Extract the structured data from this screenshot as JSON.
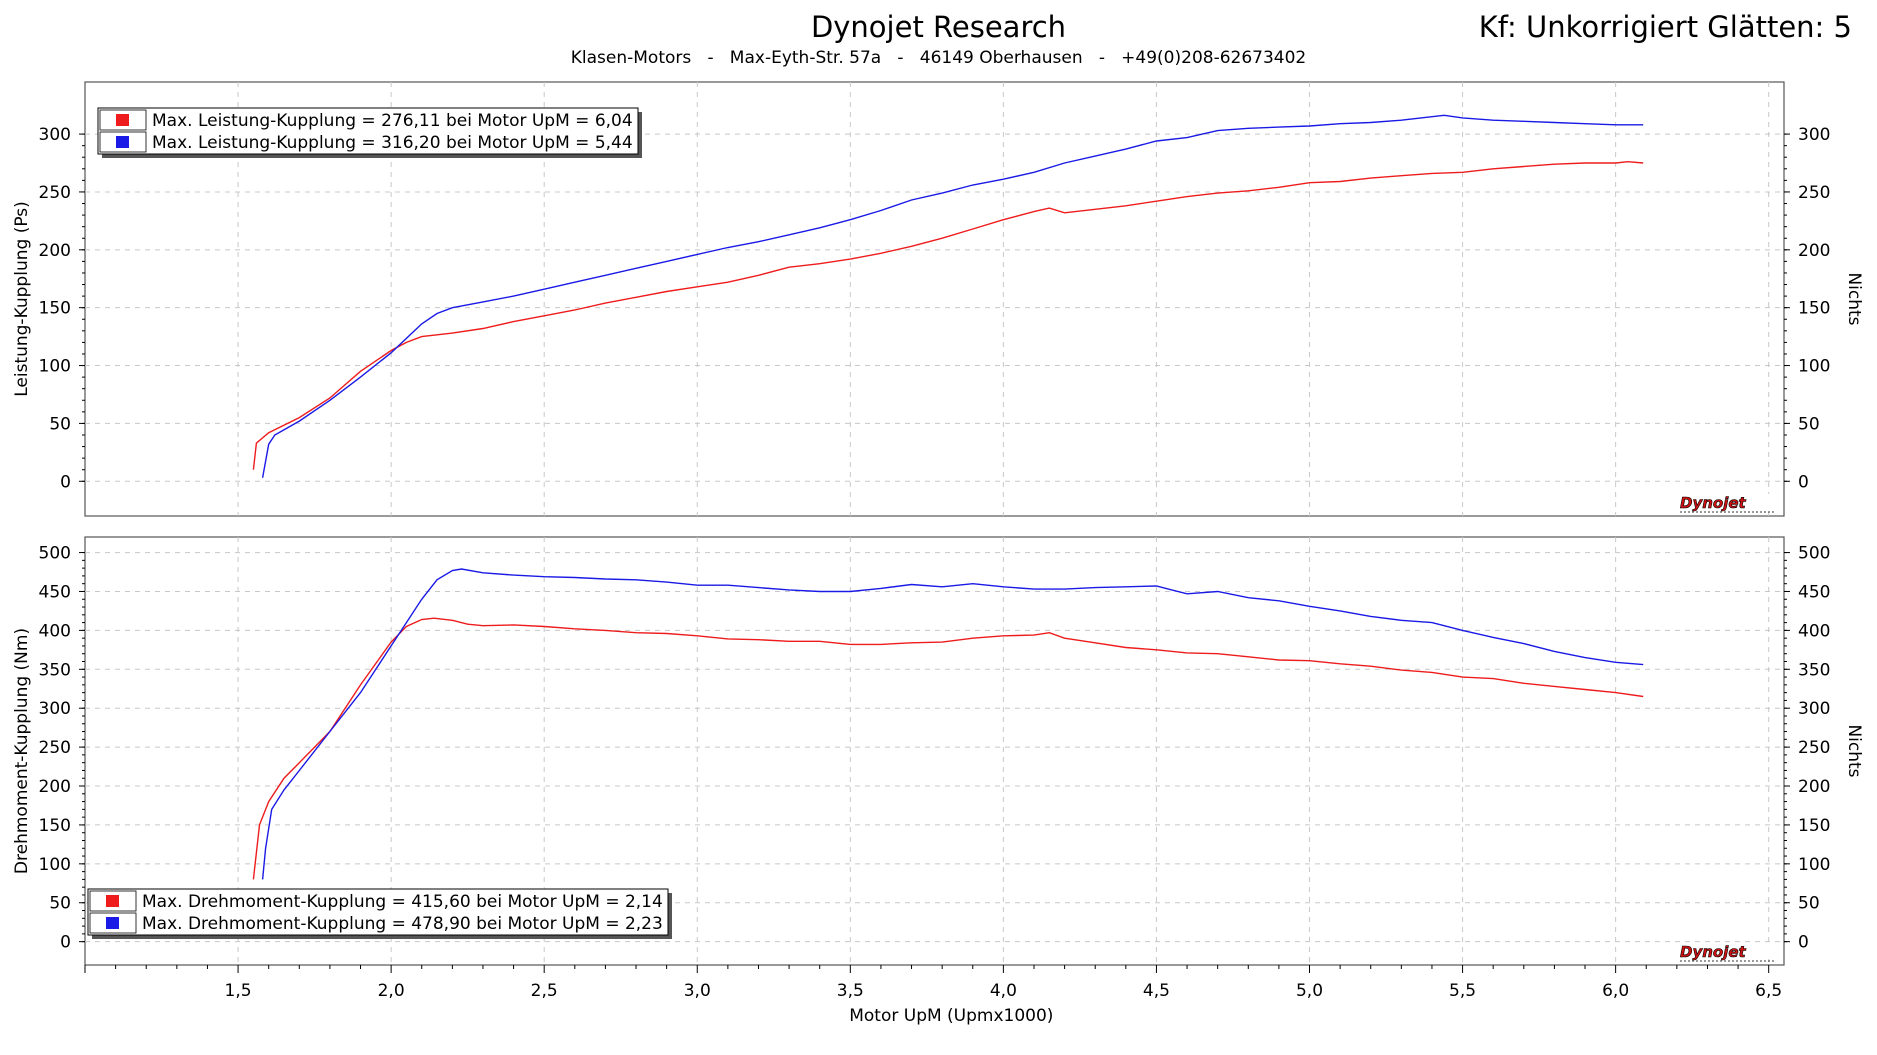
{
  "header": {
    "title": "Dynojet Research",
    "subtitle": "Klasen-Motors   -   Max-Eyth-Str. 57a   -   46149 Oberhausen   -   +49(0)208-62673402",
    "correction": "Kf: Unkorrigiert Glätten: 5"
  },
  "colors": {
    "red": "#ee1c1c",
    "blue": "#1a1ae6",
    "grid": "#c8c8c8"
  },
  "logo_text": "Dynojet",
  "chart_data": [
    {
      "type": "line",
      "ylabel": "Leistung-Kupplung (Ps)",
      "y2label": "Nichts",
      "xlim": [
        1.0,
        6.55
      ],
      "ylim": [
        -30,
        345
      ],
      "yticks": [
        0,
        50,
        100,
        150,
        200,
        250,
        300
      ],
      "legend_placement": "top-left",
      "legend": [
        "Max. Leistung-Kupplung = 276,11 bei Motor UpM = 6,04",
        "Max. Leistung-Kupplung = 316,20 bei Motor UpM = 5,44"
      ],
      "series": [
        {
          "color": "red",
          "points": [
            [
              1.55,
              10
            ],
            [
              1.56,
              33
            ],
            [
              1.6,
              42
            ],
            [
              1.7,
              55
            ],
            [
              1.8,
              72
            ],
            [
              1.9,
              95
            ],
            [
              2.0,
              113
            ],
            [
              2.05,
              120
            ],
            [
              2.1,
              125
            ],
            [
              2.2,
              128
            ],
            [
              2.3,
              132
            ],
            [
              2.4,
              138
            ],
            [
              2.5,
              143
            ],
            [
              2.6,
              148
            ],
            [
              2.7,
              154
            ],
            [
              2.8,
              159
            ],
            [
              2.9,
              164
            ],
            [
              3.0,
              168
            ],
            [
              3.1,
              172
            ],
            [
              3.2,
              178
            ],
            [
              3.3,
              185
            ],
            [
              3.4,
              188
            ],
            [
              3.5,
              192
            ],
            [
              3.6,
              197
            ],
            [
              3.7,
              203
            ],
            [
              3.8,
              210
            ],
            [
              3.9,
              218
            ],
            [
              4.0,
              226
            ],
            [
              4.1,
              233
            ],
            [
              4.15,
              236
            ],
            [
              4.2,
              232
            ],
            [
              4.3,
              235
            ],
            [
              4.4,
              238
            ],
            [
              4.5,
              242
            ],
            [
              4.6,
              246
            ],
            [
              4.7,
              249
            ],
            [
              4.8,
              251
            ],
            [
              4.9,
              254
            ],
            [
              5.0,
              258
            ],
            [
              5.1,
              259
            ],
            [
              5.2,
              262
            ],
            [
              5.3,
              264
            ],
            [
              5.4,
              266
            ],
            [
              5.5,
              267
            ],
            [
              5.6,
              270
            ],
            [
              5.7,
              272
            ],
            [
              5.8,
              274
            ],
            [
              5.9,
              275
            ],
            [
              6.0,
              275
            ],
            [
              6.04,
              276.11
            ],
            [
              6.09,
              275
            ]
          ]
        },
        {
          "color": "blue",
          "points": [
            [
              1.58,
              3
            ],
            [
              1.6,
              32
            ],
            [
              1.62,
              40
            ],
            [
              1.7,
              52
            ],
            [
              1.8,
              70
            ],
            [
              1.9,
              90
            ],
            [
              2.0,
              111
            ],
            [
              2.1,
              136
            ],
            [
              2.15,
              145
            ],
            [
              2.2,
              150
            ],
            [
              2.3,
              155
            ],
            [
              2.4,
              160
            ],
            [
              2.5,
              166
            ],
            [
              2.6,
              172
            ],
            [
              2.7,
              178
            ],
            [
              2.8,
              184
            ],
            [
              2.9,
              190
            ],
            [
              3.0,
              196
            ],
            [
              3.1,
              202
            ],
            [
              3.2,
              207
            ],
            [
              3.3,
              213
            ],
            [
              3.4,
              219
            ],
            [
              3.5,
              226
            ],
            [
              3.6,
              234
            ],
            [
              3.7,
              243
            ],
            [
              3.8,
              249
            ],
            [
              3.9,
              256
            ],
            [
              4.0,
              261
            ],
            [
              4.1,
              267
            ],
            [
              4.2,
              275
            ],
            [
              4.3,
              281
            ],
            [
              4.4,
              287
            ],
            [
              4.5,
              294
            ],
            [
              4.6,
              297
            ],
            [
              4.7,
              303
            ],
            [
              4.8,
              305
            ],
            [
              4.9,
              306
            ],
            [
              5.0,
              307
            ],
            [
              5.1,
              309
            ],
            [
              5.2,
              310
            ],
            [
              5.3,
              312
            ],
            [
              5.4,
              315
            ],
            [
              5.44,
              316.2
            ],
            [
              5.5,
              314
            ],
            [
              5.6,
              312
            ],
            [
              5.7,
              311
            ],
            [
              5.8,
              310
            ],
            [
              5.9,
              309
            ],
            [
              6.0,
              308
            ],
            [
              6.09,
              308
            ]
          ]
        }
      ]
    },
    {
      "type": "line",
      "ylabel": "Drehmoment-Kupplung (Nm)",
      "y2label": "Nichts",
      "xlabel": "Motor UpM (Upmx1000)",
      "xlim": [
        1.0,
        6.55
      ],
      "ylim": [
        -30,
        520
      ],
      "yticks": [
        0,
        50,
        100,
        150,
        200,
        250,
        300,
        350,
        400,
        450,
        500
      ],
      "xticks": [
        "1,5",
        "2,0",
        "2,5",
        "3,0",
        "3,5",
        "4,0",
        "4,5",
        "5,0",
        "5,5",
        "6,0",
        "6,5"
      ],
      "legend_placement": "bottom-left",
      "legend": [
        "Max. Drehmoment-Kupplung = 415,60 bei Motor UpM = 2,14",
        "Max. Drehmoment-Kupplung = 478,90 bei Motor UpM = 2,23"
      ],
      "series": [
        {
          "color": "red",
          "points": [
            [
              1.55,
              80
            ],
            [
              1.57,
              150
            ],
            [
              1.6,
              180
            ],
            [
              1.65,
              210
            ],
            [
              1.7,
              230
            ],
            [
              1.8,
              270
            ],
            [
              1.9,
              330
            ],
            [
              2.0,
              385
            ],
            [
              2.05,
              405
            ],
            [
              2.1,
              414
            ],
            [
              2.14,
              415.6
            ],
            [
              2.2,
              413
            ],
            [
              2.25,
              408
            ],
            [
              2.3,
              406
            ],
            [
              2.4,
              407
            ],
            [
              2.5,
              405
            ],
            [
              2.6,
              402
            ],
            [
              2.7,
              400
            ],
            [
              2.8,
              397
            ],
            [
              2.9,
              396
            ],
            [
              3.0,
              393
            ],
            [
              3.1,
              389
            ],
            [
              3.2,
              388
            ],
            [
              3.3,
              386
            ],
            [
              3.4,
              386
            ],
            [
              3.5,
              382
            ],
            [
              3.6,
              382
            ],
            [
              3.7,
              384
            ],
            [
              3.8,
              385
            ],
            [
              3.9,
              390
            ],
            [
              4.0,
              393
            ],
            [
              4.1,
              394
            ],
            [
              4.15,
              397
            ],
            [
              4.2,
              390
            ],
            [
              4.3,
              384
            ],
            [
              4.4,
              378
            ],
            [
              4.5,
              375
            ],
            [
              4.6,
              371
            ],
            [
              4.7,
              370
            ],
            [
              4.8,
              366
            ],
            [
              4.9,
              362
            ],
            [
              5.0,
              361
            ],
            [
              5.1,
              357
            ],
            [
              5.2,
              354
            ],
            [
              5.3,
              349
            ],
            [
              5.4,
              346
            ],
            [
              5.5,
              340
            ],
            [
              5.6,
              338
            ],
            [
              5.7,
              332
            ],
            [
              5.8,
              328
            ],
            [
              5.9,
              324
            ],
            [
              6.0,
              320
            ],
            [
              6.09,
              315
            ]
          ]
        },
        {
          "color": "blue",
          "points": [
            [
              1.58,
              80
            ],
            [
              1.59,
              120
            ],
            [
              1.61,
              170
            ],
            [
              1.65,
              195
            ],
            [
              1.7,
              220
            ],
            [
              1.8,
              270
            ],
            [
              1.9,
              320
            ],
            [
              2.0,
              380
            ],
            [
              2.05,
              410
            ],
            [
              2.1,
              440
            ],
            [
              2.15,
              465
            ],
            [
              2.2,
              477
            ],
            [
              2.23,
              478.9
            ],
            [
              2.3,
              474
            ],
            [
              2.4,
              471
            ],
            [
              2.5,
              469
            ],
            [
              2.6,
              468
            ],
            [
              2.7,
              466
            ],
            [
              2.8,
              465
            ],
            [
              2.9,
              462
            ],
            [
              3.0,
              458
            ],
            [
              3.1,
              458
            ],
            [
              3.2,
              455
            ],
            [
              3.3,
              452
            ],
            [
              3.4,
              450
            ],
            [
              3.5,
              450
            ],
            [
              3.6,
              454
            ],
            [
              3.7,
              459
            ],
            [
              3.8,
              456
            ],
            [
              3.9,
              460
            ],
            [
              4.0,
              456
            ],
            [
              4.1,
              453
            ],
            [
              4.2,
              453
            ],
            [
              4.3,
              455
            ],
            [
              4.4,
              456
            ],
            [
              4.5,
              457
            ],
            [
              4.55,
              452
            ],
            [
              4.6,
              447
            ],
            [
              4.7,
              450
            ],
            [
              4.8,
              442
            ],
            [
              4.9,
              438
            ],
            [
              5.0,
              431
            ],
            [
              5.1,
              425
            ],
            [
              5.2,
              418
            ],
            [
              5.3,
              413
            ],
            [
              5.4,
              410
            ],
            [
              5.5,
              400
            ],
            [
              5.6,
              391
            ],
            [
              5.7,
              383
            ],
            [
              5.8,
              373
            ],
            [
              5.9,
              365
            ],
            [
              6.0,
              359
            ],
            [
              6.09,
              356
            ]
          ]
        }
      ]
    }
  ]
}
